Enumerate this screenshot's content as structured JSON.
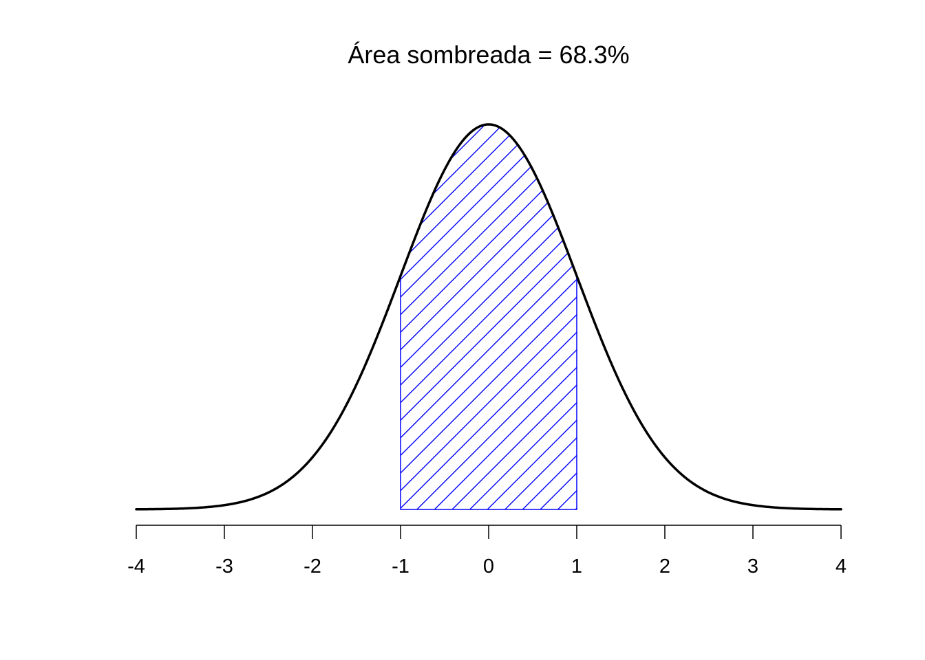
{
  "chart_data": {
    "type": "area",
    "title": "Área sombreada = 68.3%",
    "xlabel": "",
    "ylabel": "",
    "xlim": [
      -4,
      4
    ],
    "ylim": [
      0,
      0.3989
    ],
    "x_ticks": [
      "-4",
      "-3",
      "-2",
      "-1",
      "0",
      "1",
      "2",
      "3",
      "4"
    ],
    "x_tick_values": [
      -4,
      -3,
      -2,
      -1,
      0,
      1,
      2,
      3,
      4
    ],
    "y_axis_shown": false,
    "grid": false,
    "series": [
      {
        "kind": "curve",
        "distribution": "standard normal density",
        "mean": 0,
        "sd": 1,
        "color": "#000000"
      },
      {
        "kind": "shaded_region",
        "x_from": -1,
        "x_to": 1,
        "fill": "diagonal hatching",
        "color": "#0000ff",
        "shaded_area_percent": 68.3
      }
    ]
  }
}
